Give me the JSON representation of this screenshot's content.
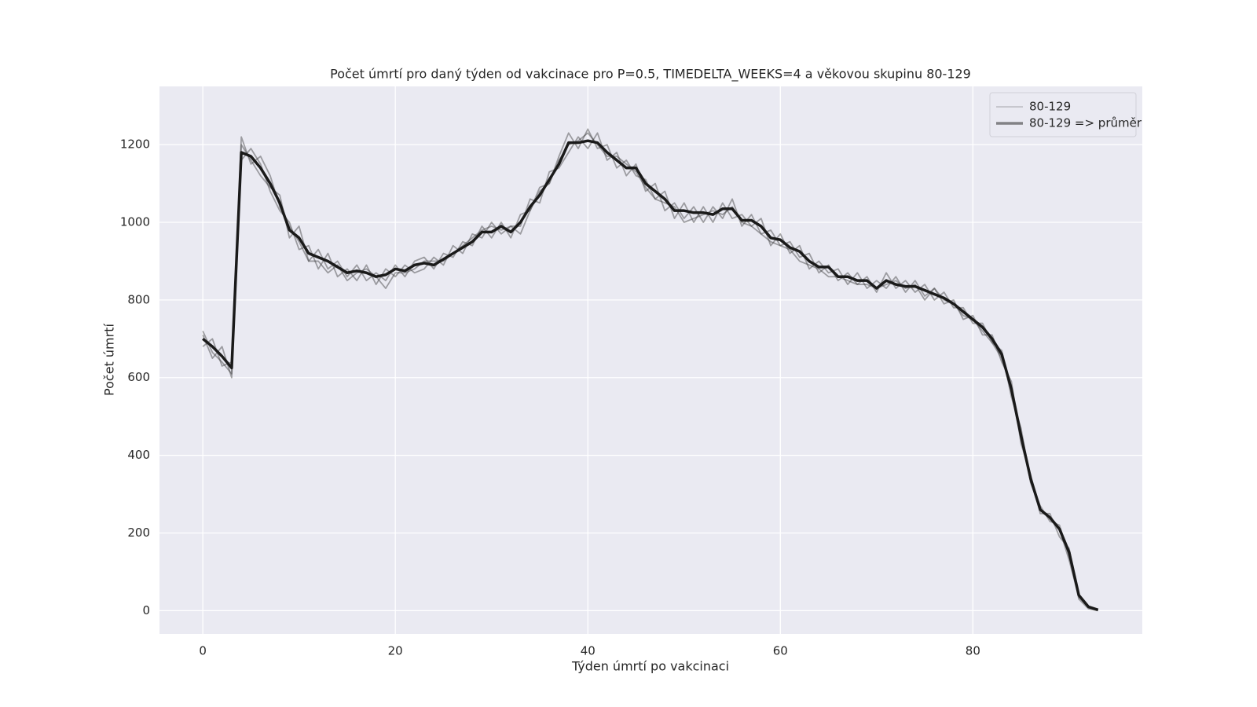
{
  "chart_data": {
    "type": "line",
    "title": "Počet úmrtí pro daný týden od vakcinace pro P=0.5, TIMEDELTA_WEEKS=4 a věkovou skupinu 80-129",
    "x_label": "Týden úmrtí po vakcinaci",
    "y_label": "Počet úmrtí",
    "xlim": [
      -4.5,
      97.6
    ],
    "ylim": [
      -60,
      1350
    ],
    "xticks": [
      0,
      20,
      40,
      60,
      80
    ],
    "yticks": [
      0,
      200,
      400,
      600,
      800,
      1000,
      1200
    ],
    "grid": true,
    "legend": "upper right",
    "series": [
      {
        "name": "80-129",
        "color": "#3c3c3c",
        "alpha": 0.45,
        "width": 1.8,
        "values": [
          720,
          665,
          640,
          610,
          1200,
          1160,
          1120,
          1090,
          1070,
          960,
          990,
          900,
          930,
          880,
          900,
          860,
          890,
          850,
          870,
          850,
          890,
          860,
          900,
          910,
          880,
          920,
          910,
          950,
          940,
          990,
          960,
          1000,
          960,
          1020,
          1030,
          1090,
          1100,
          1170,
          1230,
          1190,
          1240,
          1190,
          1200,
          1140,
          1160,
          1120,
          1110,
          1060,
          1080,
          1010,
          1050,
          1000,
          1040,
          1000,
          1050,
          1010,
          1020,
          990,
          1010,
          940,
          970,
          920,
          940,
          880,
          900,
          870,
          880,
          840,
          870,
          830,
          850,
          830,
          860,
          820,
          850,
          810,
          830,
          790,
          800,
          750,
          760,
          710,
          710,
          640,
          590,
          430,
          350,
          250,
          250,
          190,
          160,
          30,
          5,
          0
        ]
      },
      {
        "name": "80-129",
        "color": "#3c3c3c",
        "alpha": 0.45,
        "width": 1.8,
        "values": [
          680,
          700,
          630,
          640,
          1160,
          1190,
          1150,
          1080,
          1030,
          1000,
          930,
          940,
          880,
          920,
          860,
          880,
          850,
          890,
          840,
          880,
          860,
          890,
          870,
          880,
          910,
          890,
          940,
          920,
          970,
          960,
          1000,
          970,
          990,
          990,
          1060,
          1050,
          1130,
          1140,
          1180,
          1220,
          1190,
          1230,
          1160,
          1180,
          1120,
          1150,
          1080,
          1100,
          1030,
          1050,
          1010,
          1040,
          1000,
          1040,
          1010,
          1060,
          990,
          1020,
          970,
          980,
          940,
          950,
          910,
          920,
          870,
          890,
          850,
          870,
          840,
          860,
          820,
          870,
          830,
          850,
          820,
          840,
          800,
          820,
          780,
          780,
          740,
          740,
          690,
          670,
          550,
          470,
          330,
          270,
          230,
          220,
          140,
          40,
          8,
          1
        ]
      },
      {
        "name": "80-129",
        "color": "#3c3c3c",
        "alpha": 0.45,
        "width": 1.8,
        "values": [
          710,
          650,
          680,
          600,
          1220,
          1150,
          1170,
          1120,
          1040,
          990,
          950,
          900,
          900,
          870,
          890,
          850,
          870,
          880,
          860,
          830,
          870,
          870,
          880,
          900,
          900,
          900,
          920,
          940,
          960,
          980,
          990,
          980,
          990,
          970,
          1030,
          1080,
          1100,
          1160,
          1200,
          1210,
          1230,
          1200,
          1170,
          1170,
          1150,
          1130,
          1090,
          1060,
          1050,
          1040,
          1000,
          1010,
          1020,
          1030,
          1020,
          1040,
          1000,
          990,
          970,
          950,
          940,
          930,
          900,
          890,
          880,
          860,
          860,
          850,
          840,
          840,
          830,
          840,
          850,
          830,
          840,
          800,
          830,
          800,
          790,
          760,
          750,
          720,
          690,
          650,
          580,
          460,
          330,
          260,
          240,
          210,
          130,
          35,
          10,
          2
        ]
      },
      {
        "name": "80-129 => průměr",
        "color": "#1a1a1a",
        "alpha": 1,
        "width": 3.5,
        "values": [
          700,
          680,
          655,
          625,
          1180,
          1170,
          1140,
          1100,
          1050,
          980,
          960,
          920,
          910,
          900,
          885,
          870,
          875,
          870,
          860,
          865,
          880,
          875,
          890,
          895,
          890,
          905,
          920,
          935,
          950,
          975,
          975,
          990,
          975,
          1000,
          1040,
          1070,
          1110,
          1150,
          1205,
          1205,
          1210,
          1205,
          1180,
          1160,
          1140,
          1140,
          1100,
          1080,
          1060,
          1030,
          1030,
          1025,
          1025,
          1020,
          1035,
          1035,
          1005,
          1005,
          990,
          960,
          955,
          935,
          925,
          900,
          885,
          885,
          860,
          860,
          850,
          850,
          830,
          850,
          840,
          835,
          835,
          825,
          815,
          805,
          790,
          770,
          750,
          730,
          700,
          660,
          570,
          450,
          340,
          260,
          240,
          210,
          150,
          40,
          10,
          2
        ]
      }
    ]
  }
}
